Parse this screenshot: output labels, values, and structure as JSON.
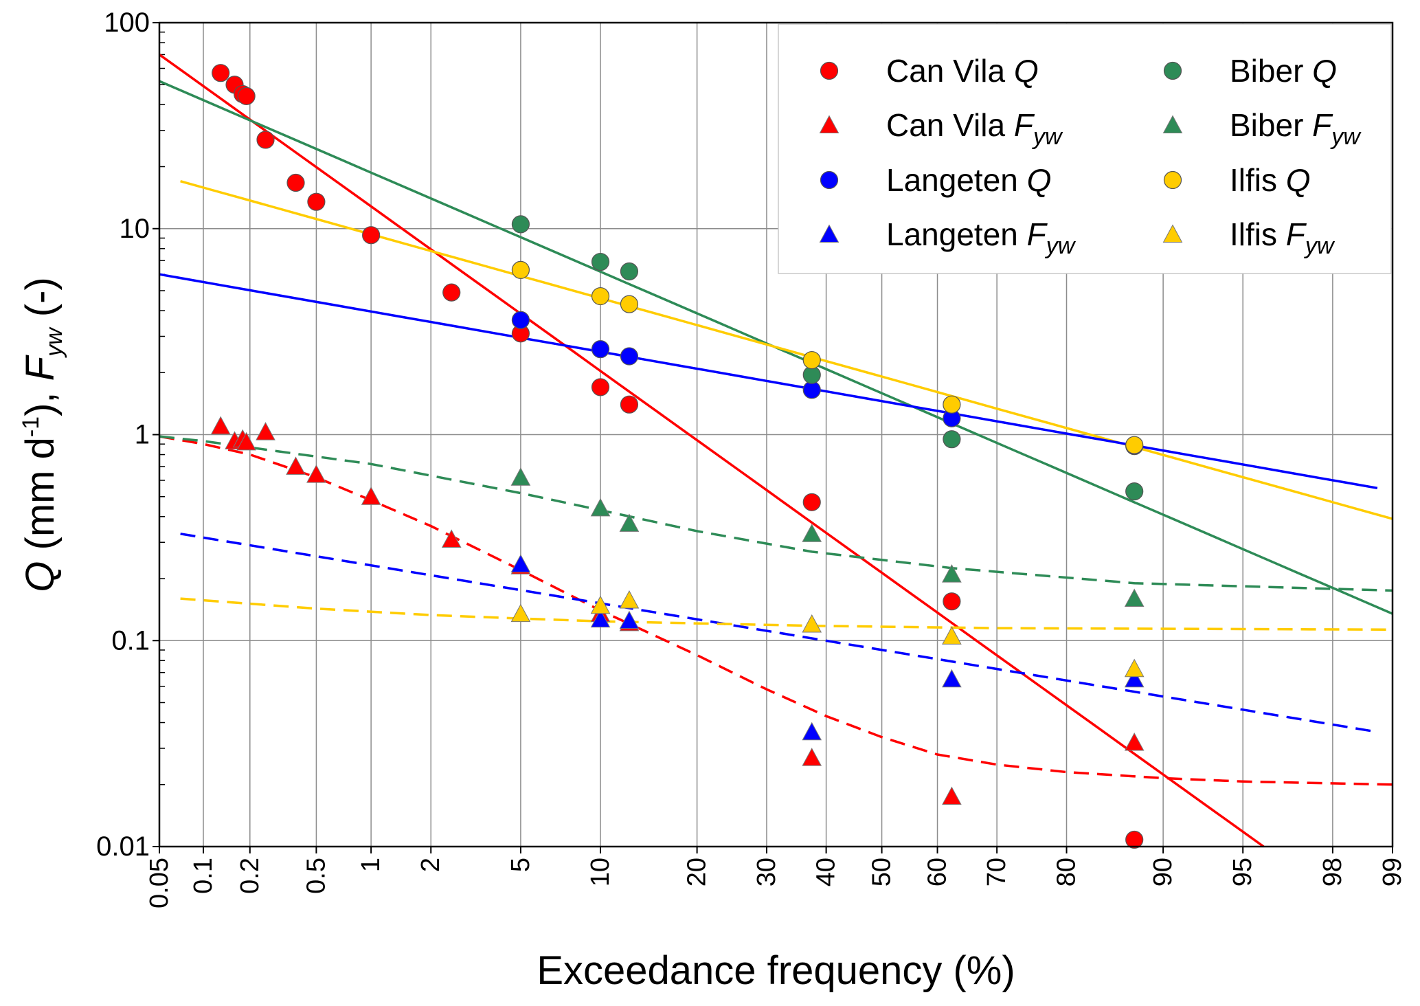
{
  "chart_data": {
    "type": "scatter",
    "title": "",
    "xlabel": "Exceedance frequency (%)",
    "ylabel": {
      "q": "Q",
      "unit_open": " (mm d",
      "unit_exp": "-1",
      "unit_close": "), ",
      "f": "F",
      "f_sub": "yw",
      "tail": " (-)"
    },
    "x_scale": "normal-probability",
    "y_scale": "log",
    "xlim": [
      0.05,
      99
    ],
    "ylim": [
      0.01,
      100
    ],
    "x_ticks": [
      0.05,
      0.1,
      0.2,
      0.5,
      1,
      2,
      5,
      10,
      20,
      30,
      40,
      50,
      60,
      70,
      80,
      90,
      95,
      98,
      99
    ],
    "x_tick_labels": [
      "0.05",
      "0.1",
      "0.2",
      "0.5",
      "1",
      "2",
      "5",
      "10",
      "20",
      "30",
      "40",
      "50",
      "60",
      "70",
      "80",
      "90",
      "95",
      "98",
      "99"
    ],
    "y_ticks": [
      0.01,
      0.1,
      1,
      10,
      100
    ],
    "y_tick_labels": [
      "0.01",
      "0.1",
      "1",
      "10",
      "100"
    ],
    "grid": true,
    "legend": {
      "position": "top-right",
      "columns": 2
    },
    "series": [
      {
        "name": "Can Vila Q",
        "label": "Can Vila ",
        "italic": "Q",
        "sub": "",
        "color": "#ff0000",
        "marker": "circle",
        "x": [
          0.13,
          0.16,
          0.18,
          0.19,
          0.25,
          0.38,
          0.5,
          1.0,
          2.5,
          5,
          10,
          12.5,
          37.5,
          62.5,
          87.5
        ],
        "y": [
          57,
          50,
          45,
          44,
          27,
          16.7,
          13.5,
          9.3,
          4.9,
          3.1,
          1.7,
          1.4,
          0.47,
          0.155,
          0.0108
        ]
      },
      {
        "name": "Can Vila Fyw",
        "label": "Can Vila ",
        "italic": "F",
        "sub": "yw",
        "color": "#ff0000",
        "marker": "triangle",
        "x": [
          0.13,
          0.16,
          0.18,
          0.19,
          0.25,
          0.38,
          0.5,
          1.0,
          2.5,
          5,
          10,
          12.5,
          37.5,
          62.5,
          87.5
        ],
        "y": [
          1.1,
          0.93,
          0.95,
          0.92,
          1.03,
          0.7,
          0.64,
          0.5,
          0.31,
          0.23,
          0.135,
          0.122,
          0.027,
          0.0175,
          0.032
        ]
      },
      {
        "name": "Langeten Q",
        "label": "Langeten ",
        "italic": "Q",
        "sub": "",
        "color": "#0000ff",
        "marker": "circle",
        "x": [
          5,
          10,
          12.5,
          37.5,
          62.5,
          87.5
        ],
        "y": [
          3.6,
          2.6,
          2.4,
          1.65,
          1.2,
          0.88
        ]
      },
      {
        "name": "Langeten Fyw",
        "label": "Langeten ",
        "italic": "F",
        "sub": "yw",
        "color": "#0000ff",
        "marker": "triangle",
        "x": [
          5,
          10,
          12.5,
          37.5,
          62.5,
          87.5
        ],
        "y": [
          0.235,
          0.127,
          0.125,
          0.036,
          0.065,
          0.065
        ]
      },
      {
        "name": "Biber Q",
        "label": "Biber ",
        "italic": "Q",
        "sub": "",
        "color": "#2e8b57",
        "marker": "circle",
        "x": [
          5,
          10,
          12.5,
          37.5,
          62.5,
          87.5
        ],
        "y": [
          10.5,
          6.9,
          6.2,
          1.95,
          0.95,
          0.53
        ]
      },
      {
        "name": "Biber Fyw",
        "label": "Biber ",
        "italic": "F",
        "sub": "yw",
        "color": "#2e8b57",
        "marker": "triangle",
        "x": [
          5,
          10,
          12.5,
          37.5,
          62.5,
          87.5
        ],
        "y": [
          0.62,
          0.44,
          0.37,
          0.33,
          0.21,
          0.16
        ]
      },
      {
        "name": "Ilfis Q",
        "label": "Ilfis ",
        "italic": "Q",
        "sub": "",
        "color": "#ffcc00",
        "marker": "circle",
        "x": [
          5,
          10,
          12.5,
          37.5,
          62.5,
          87.5
        ],
        "y": [
          6.3,
          4.7,
          4.3,
          2.3,
          1.4,
          0.89
        ]
      },
      {
        "name": "Ilfis Fyw",
        "label": "Ilfis ",
        "italic": "F",
        "sub": "yw",
        "color": "#ffcc00",
        "marker": "triangle",
        "x": [
          5,
          10,
          12.5,
          37.5,
          62.5,
          87.5
        ],
        "y": [
          0.135,
          0.148,
          0.157,
          0.12,
          0.105,
          0.073
        ]
      }
    ],
    "fit_lines": [
      {
        "name": "Can Vila Q fit",
        "color": "#ff0000",
        "dash": false,
        "x": [
          0.05,
          95.9
        ],
        "y": [
          70,
          0.01
        ]
      },
      {
        "name": "Biber Q fit",
        "color": "#2e8b57",
        "dash": false,
        "x": [
          0.05,
          99
        ],
        "y": [
          52,
          0.135
        ]
      },
      {
        "name": "Ilfis Q fit",
        "color": "#ffcc00",
        "dash": false,
        "x": [
          0.07,
          99
        ],
        "y": [
          17,
          0.39
        ]
      },
      {
        "name": "Langeten Q fit",
        "color": "#0000ff",
        "dash": false,
        "x": [
          0.05,
          98.8
        ],
        "y": [
          6.0,
          0.55
        ]
      },
      {
        "name": "Can Vila Fyw fit",
        "color": "#ff0000",
        "dash": true,
        "x": [
          0.05,
          0.1,
          0.2,
          0.5,
          1,
          2,
          5,
          10,
          20,
          30,
          40,
          50,
          60,
          70,
          80,
          90,
          95,
          99
        ],
        "y": [
          0.98,
          0.9,
          0.8,
          0.62,
          0.48,
          0.36,
          0.22,
          0.14,
          0.085,
          0.058,
          0.043,
          0.034,
          0.028,
          0.025,
          0.023,
          0.0215,
          0.0207,
          0.02
        ]
      },
      {
        "name": "Biber Fyw fit",
        "color": "#2e8b57",
        "dash": true,
        "x": [
          0.05,
          0.1,
          1,
          5,
          10,
          20,
          37.5,
          62.5,
          87.5,
          99
        ],
        "y": [
          0.98,
          0.93,
          0.72,
          0.52,
          0.43,
          0.34,
          0.27,
          0.225,
          0.19,
          0.175
        ]
      },
      {
        "name": "Langeten Fyw fit",
        "color": "#0000ff",
        "dash": true,
        "x": [
          0.07,
          98.8
        ],
        "y": [
          0.33,
          0.036
        ]
      },
      {
        "name": "Ilfis Fyw fit",
        "color": "#ffcc00",
        "dash": true,
        "x": [
          0.07,
          0.5,
          2,
          5,
          10,
          37.5,
          70,
          99
        ],
        "y": [
          0.16,
          0.143,
          0.133,
          0.128,
          0.124,
          0.118,
          0.115,
          0.113
        ]
      }
    ]
  }
}
